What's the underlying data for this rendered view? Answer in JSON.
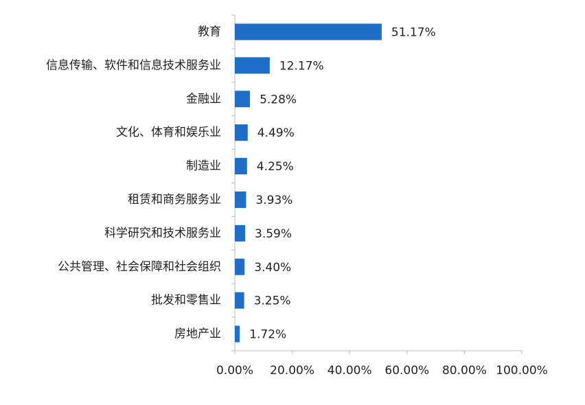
{
  "chart_data": {
    "type": "hbar",
    "categories": [
      "教育",
      "信息传输、软件和信息技术服务业",
      "金融业",
      "文化、体育和娱乐业",
      "制造业",
      "租赁和商务服务业",
      "科学研究和技术服务业",
      "公共管理、社会保障和社会组织",
      "批发和零售业",
      "房地产业"
    ],
    "values": [
      51.17,
      12.17,
      5.28,
      4.49,
      4.25,
      3.93,
      3.59,
      3.4,
      3.25,
      1.72
    ],
    "value_labels": [
      "51.17%",
      "12.17%",
      "5.28%",
      "4.49%",
      "4.25%",
      "3.93%",
      "3.59%",
      "3.40%",
      "3.25%",
      "1.72%"
    ],
    "color": "#1f6fc8",
    "xlim": [
      0,
      100
    ],
    "xticks": [
      {
        "value": 0,
        "label": "0.00%"
      },
      {
        "value": 20,
        "label": "20.00%"
      },
      {
        "value": 40,
        "label": "40.00%"
      },
      {
        "value": 60,
        "label": "60.00%"
      },
      {
        "value": 80,
        "label": "80.00%"
      },
      {
        "value": 100,
        "label": "100.00%"
      }
    ],
    "grid": false
  }
}
